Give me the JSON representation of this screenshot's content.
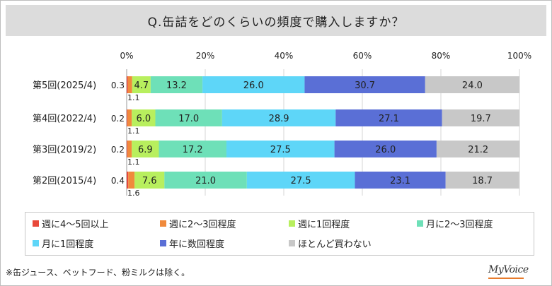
{
  "title": "Q.缶詰をどのくらいの頻度で購入しますか？",
  "footnote": "※缶ジュース、ペットフード、粉ミルクは除く。",
  "brand": "MyVoice",
  "chart_data": {
    "type": "bar",
    "orientation": "horizontal",
    "stacked": true,
    "x_ticks": [
      "0%",
      "20%",
      "40%",
      "60%",
      "80%",
      "100%"
    ],
    "xlim": [
      0,
      100
    ],
    "categories": [
      "第5回(2025/4)",
      "第4回(2022/4)",
      "第3回(2019/2)",
      "第2回(2015/4)"
    ],
    "series": [
      {
        "name": "週に4～5回以上",
        "color": "#e8483a",
        "values": [
          0.3,
          0.2,
          0.2,
          0.4
        ]
      },
      {
        "name": "週に2～3回程度",
        "color": "#f08a3c",
        "values": [
          1.1,
          1.1,
          1.1,
          1.6
        ]
      },
      {
        "name": "週に1回程度",
        "color": "#b8ef5e",
        "values": [
          4.7,
          6.0,
          6.9,
          7.6
        ]
      },
      {
        "name": "月に2～3回程度",
        "color": "#6ee0b8",
        "values": [
          13.2,
          17.0,
          17.2,
          21.0
        ]
      },
      {
        "name": "月に1回程度",
        "color": "#5ed6f8",
        "values": [
          26.0,
          28.9,
          27.5,
          27.5
        ]
      },
      {
        "name": "年に数回程度",
        "color": "#5a6fd6",
        "values": [
          30.7,
          27.1,
          26.0,
          23.1
        ]
      },
      {
        "name": "ほとんど買わない",
        "color": "#c8c8c8",
        "values": [
          24.0,
          19.7,
          21.2,
          18.7
        ]
      }
    ],
    "value_labels": [
      [
        "0.3",
        "1.1",
        "4.7",
        "13.2",
        "26.0",
        "30.7",
        "24.0"
      ],
      [
        "0.2",
        "1.1",
        "6.0",
        "17.0",
        "28.9",
        "27.1",
        "19.7"
      ],
      [
        "0.2",
        "1.1",
        "6.9",
        "17.2",
        "27.5",
        "26.0",
        "21.2"
      ],
      [
        "0.4",
        "1.6",
        "7.6",
        "21.0",
        "27.5",
        "23.1",
        "18.7"
      ]
    ],
    "legend_position": "bottom",
    "grid": true
  }
}
